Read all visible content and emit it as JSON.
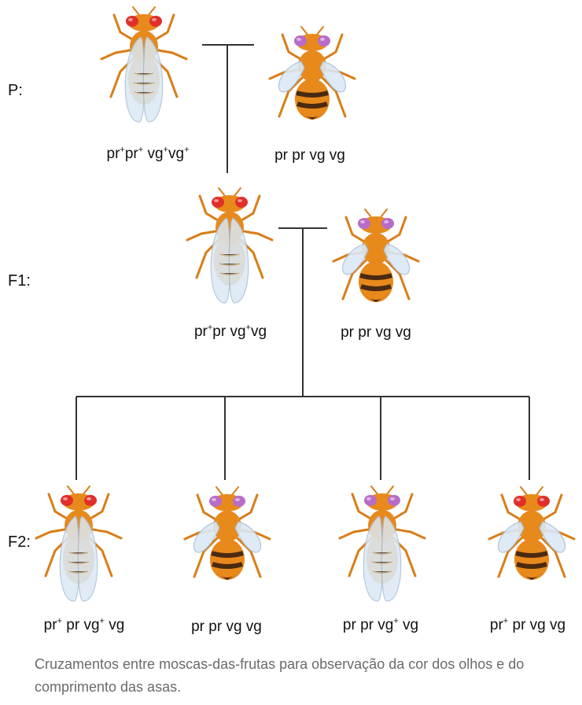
{
  "generations": {
    "p": "P:",
    "f1": "F1:",
    "f2": "F2:"
  },
  "colors": {
    "body_orange": "#e8891c",
    "wing_blue": "#dbe8f4",
    "red_eye": "#e0302a",
    "purple_eye": "#b86cc8",
    "line": "#333333"
  },
  "p_row": {
    "left": {
      "eye": "red",
      "wings": "long",
      "genotype": {
        "pre": "pr",
        "s1": "+",
        "mid1": "pr",
        "s2": "+",
        "mid2": " vg",
        "s3": "+",
        "mid3": "vg",
        "s4": "+"
      }
    },
    "right": {
      "eye": "purple",
      "wings": "vestigial",
      "genotype_text": "pr pr vg vg"
    }
  },
  "f1_row": {
    "left": {
      "eye": "red",
      "wings": "long",
      "genotype": {
        "a": "pr",
        "s1": "+",
        "b": "pr vg",
        "s2": "+",
        "c": "vg"
      }
    },
    "right": {
      "eye": "purple",
      "wings": "vestigial",
      "genotype_text": "pr pr vg vg"
    }
  },
  "f2_row": [
    {
      "eye": "red",
      "wings": "long",
      "genotype": {
        "a": "pr",
        "s1": "+",
        "b": " pr vg",
        "s2": "+",
        "c": " vg"
      }
    },
    {
      "eye": "purple",
      "wings": "vestigial",
      "genotype_text": "pr pr vg vg"
    },
    {
      "eye": "purple",
      "wings": "long",
      "genotype": {
        "a": "pr pr vg",
        "s1": "+",
        "b": " vg"
      }
    },
    {
      "eye": "red",
      "wings": "vestigial",
      "genotype": {
        "a": "pr",
        "s1": "+",
        "b": " pr vg vg"
      }
    }
  ],
  "caption": "Cruzamentos entre moscas-das-frutas para observação da cor dos olhos e do comprimento das asas."
}
